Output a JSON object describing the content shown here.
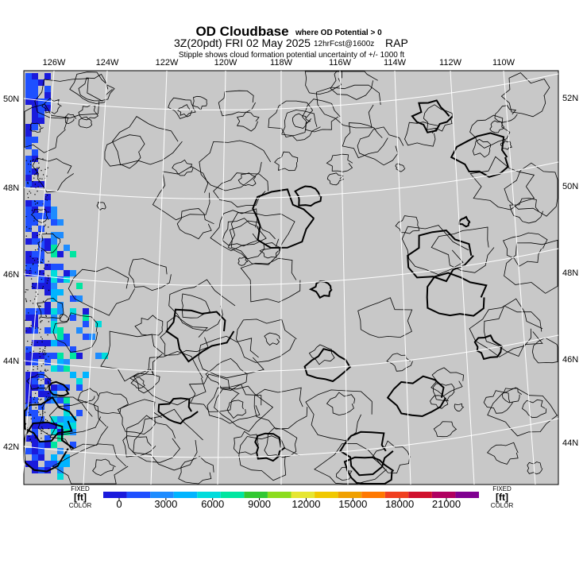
{
  "header": {
    "title": "OD Cloudbase",
    "title_note": "where OD Potential > 0",
    "valid_time": "3Z(20pdt) FRI 02 May 2025",
    "forecast": "12hrFcst@1600z",
    "model": "RAP",
    "subtitle": "Stipple shows cloud formation potential uncertainty of +/- 1000 ft"
  },
  "map": {
    "lon_labels": [
      "126W",
      "124W",
      "122W",
      "120W",
      "118W",
      "116W",
      "114W",
      "112W",
      "110W"
    ],
    "lat_labels_left": [
      "50N",
      "48N",
      "46N",
      "44N",
      "42N"
    ],
    "lat_labels_right": [
      "52N",
      "50N",
      "48N",
      "46N",
      "44N"
    ]
  },
  "colorbar": {
    "left_label": {
      "line1": "FIXED",
      "line2": "[ft]",
      "line3": "COLOR"
    },
    "right_label": {
      "line1": "FIXED",
      "line2": "[ft]",
      "line3": "COLOR"
    },
    "ticks": [
      0,
      3000,
      6000,
      9000,
      12000,
      15000,
      18000,
      21000
    ],
    "colors": [
      "#1a1adc",
      "#1e50ff",
      "#1e8cff",
      "#00b4ff",
      "#00dcdc",
      "#00e6a0",
      "#32c832",
      "#8cdc1e",
      "#e6e632",
      "#f0c800",
      "#f0a000",
      "#ff7800",
      "#f04020",
      "#d0102c",
      "#b00060",
      "#800090"
    ]
  }
}
